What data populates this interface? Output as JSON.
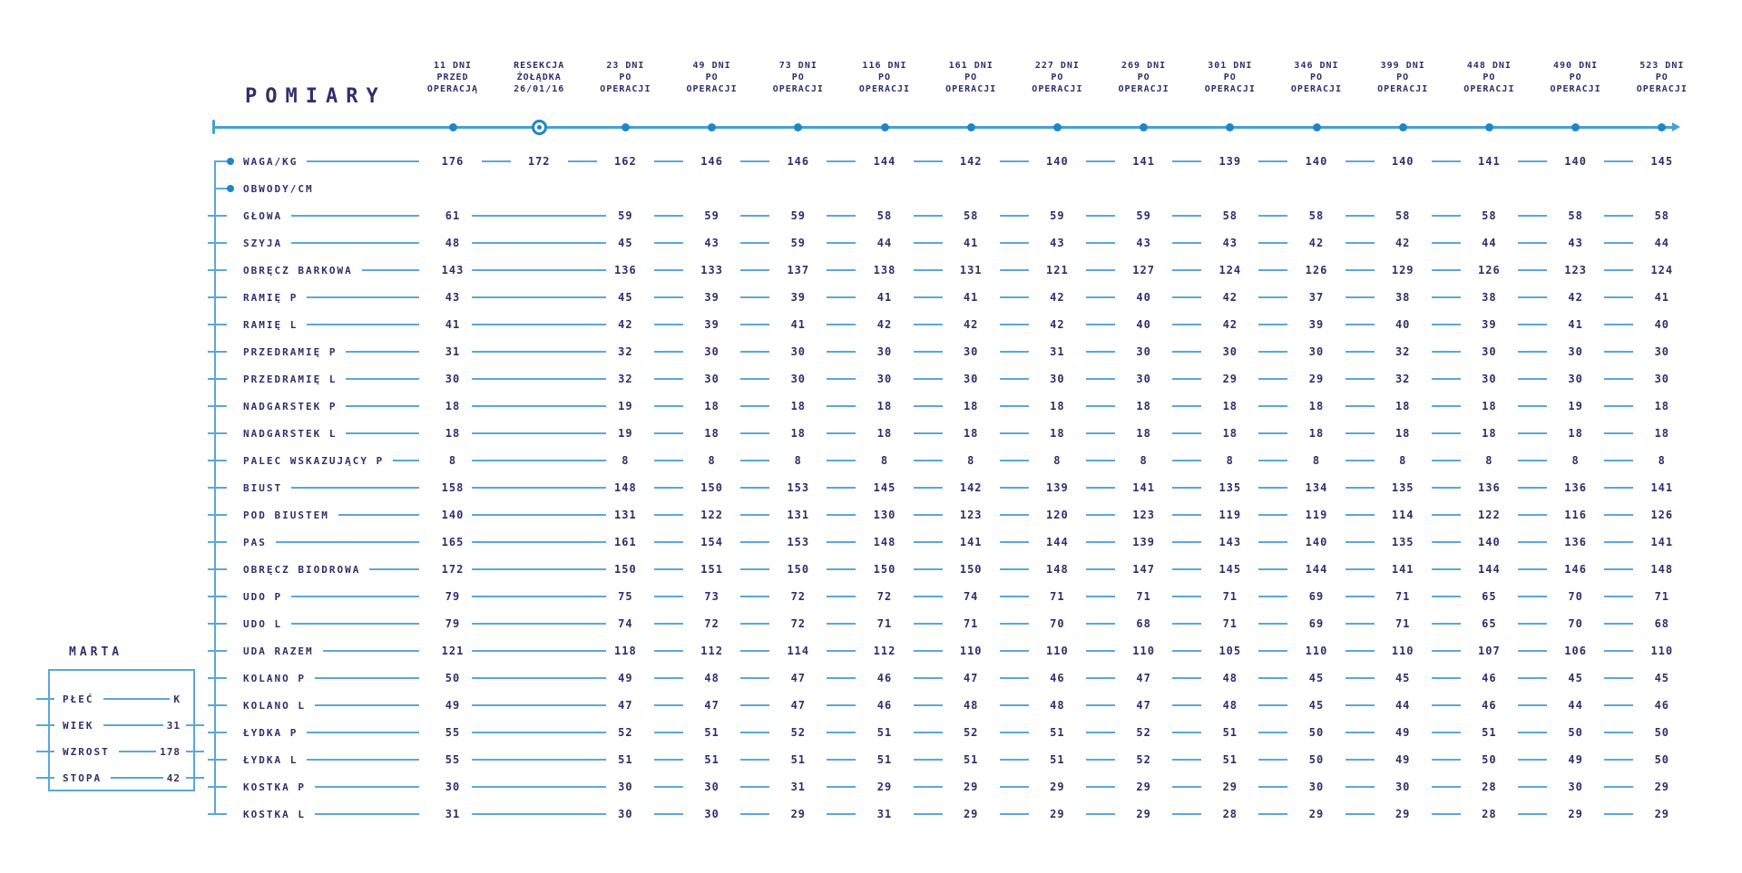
{
  "title": "POMIARY",
  "person": {
    "name": "MARTA",
    "fields": [
      {
        "label": "PŁEĆ",
        "value": "K"
      },
      {
        "label": "WIEK",
        "value": "31"
      },
      {
        "label": "WZROST",
        "value": "178"
      },
      {
        "label": "STOPA",
        "value": "42"
      }
    ]
  },
  "colors": {
    "navy_text": "#312e6b",
    "light_blue_line": "#5ba7d9",
    "accent_blue_dot": "#1f86c6"
  },
  "chart_data": {
    "type": "table",
    "title": "POMIARY",
    "legend_position": "none",
    "grid": false,
    "surgery_marker_column": 1,
    "columns": [
      [
        "11 DNI",
        "PRZED",
        "OPERACJĄ"
      ],
      [
        "RESEKCJA",
        "ŻOŁĄDKA",
        "26/01/16"
      ],
      [
        "23 DNI",
        "PO",
        "OPERACJI"
      ],
      [
        "49 DNI",
        "PO",
        "OPERACJI"
      ],
      [
        "73 DNI",
        "PO",
        "OPERACJI"
      ],
      [
        "116 DNI",
        "PO",
        "OPERACJI"
      ],
      [
        "161 DNI",
        "PO",
        "OPERACJI"
      ],
      [
        "227 DNI",
        "PO",
        "OPERACJI"
      ],
      [
        "269 DNI",
        "PO",
        "OPERACJI"
      ],
      [
        "301 DNI",
        "PO",
        "OPERACJI"
      ],
      [
        "346 DNI",
        "PO",
        "OPERACJI"
      ],
      [
        "399 DNI",
        "PO",
        "OPERACJI"
      ],
      [
        "448 DNI",
        "PO",
        "OPERACJI"
      ],
      [
        "490 DNI",
        "PO",
        "OPERACJI"
      ],
      [
        "523 DNI",
        "PO",
        "OPERACJI"
      ]
    ],
    "rows": [
      {
        "label": "WAGA/KG",
        "bullet": true,
        "values": [
          176,
          172,
          162,
          146,
          146,
          144,
          142,
          140,
          141,
          139,
          140,
          140,
          141,
          140,
          145
        ]
      },
      {
        "label": "OBWODY/CM",
        "bullet": true,
        "values": [
          null,
          null,
          null,
          null,
          null,
          null,
          null,
          null,
          null,
          null,
          null,
          null,
          null,
          null,
          null
        ]
      },
      {
        "label": "GŁOWA",
        "bullet": false,
        "values": [
          61,
          null,
          59,
          59,
          59,
          58,
          58,
          59,
          59,
          58,
          58,
          58,
          58,
          58,
          58
        ]
      },
      {
        "label": "SZYJA",
        "bullet": false,
        "values": [
          48,
          null,
          45,
          43,
          59,
          44,
          41,
          43,
          43,
          43,
          42,
          42,
          44,
          43,
          44
        ]
      },
      {
        "label": "OBRĘCZ BARKOWA",
        "bullet": false,
        "values": [
          143,
          null,
          136,
          133,
          137,
          138,
          131,
          121,
          127,
          124,
          126,
          129,
          126,
          123,
          124
        ]
      },
      {
        "label": "RAMIĘ P",
        "bullet": false,
        "values": [
          43,
          null,
          45,
          39,
          39,
          41,
          41,
          42,
          40,
          42,
          37,
          38,
          38,
          42,
          41
        ]
      },
      {
        "label": "RAMIĘ L",
        "bullet": false,
        "values": [
          41,
          null,
          42,
          39,
          41,
          42,
          42,
          42,
          40,
          42,
          39,
          40,
          39,
          41,
          40
        ]
      },
      {
        "label": "PRZEDRAMIĘ P",
        "bullet": false,
        "values": [
          31,
          null,
          32,
          30,
          30,
          30,
          30,
          31,
          30,
          30,
          30,
          32,
          30,
          30,
          30
        ]
      },
      {
        "label": "PRZEDRAMIĘ L",
        "bullet": false,
        "values": [
          30,
          null,
          32,
          30,
          30,
          30,
          30,
          30,
          30,
          29,
          29,
          32,
          30,
          30,
          30
        ]
      },
      {
        "label": "NADGARSTEK P",
        "bullet": false,
        "values": [
          18,
          null,
          19,
          18,
          18,
          18,
          18,
          18,
          18,
          18,
          18,
          18,
          18,
          19,
          18
        ]
      },
      {
        "label": "NADGARSTEK L",
        "bullet": false,
        "values": [
          18,
          null,
          19,
          18,
          18,
          18,
          18,
          18,
          18,
          18,
          18,
          18,
          18,
          18,
          18
        ]
      },
      {
        "label": "PALEC WSKAZUJĄCY P",
        "bullet": false,
        "values": [
          8,
          null,
          8,
          8,
          8,
          8,
          8,
          8,
          8,
          8,
          8,
          8,
          8,
          8,
          8
        ]
      },
      {
        "label": "BIUST",
        "bullet": false,
        "values": [
          158,
          null,
          148,
          150,
          153,
          145,
          142,
          139,
          141,
          135,
          134,
          135,
          136,
          136,
          141
        ]
      },
      {
        "label": "POD BIUSTEM",
        "bullet": false,
        "values": [
          140,
          null,
          131,
          122,
          131,
          130,
          123,
          120,
          123,
          119,
          119,
          114,
          122,
          116,
          126
        ]
      },
      {
        "label": "PAS",
        "bullet": false,
        "values": [
          165,
          null,
          161,
          154,
          153,
          148,
          141,
          144,
          139,
          143,
          140,
          135,
          140,
          136,
          141
        ]
      },
      {
        "label": "OBRĘCZ BIODROWA",
        "bullet": false,
        "values": [
          172,
          null,
          150,
          151,
          150,
          150,
          150,
          148,
          147,
          145,
          144,
          141,
          144,
          146,
          148
        ]
      },
      {
        "label": "UDO P",
        "bullet": false,
        "values": [
          79,
          null,
          75,
          73,
          72,
          72,
          74,
          71,
          71,
          71,
          69,
          71,
          65,
          70,
          71
        ]
      },
      {
        "label": "UDO L",
        "bullet": false,
        "values": [
          79,
          null,
          74,
          72,
          72,
          71,
          71,
          70,
          68,
          71,
          69,
          71,
          65,
          70,
          68
        ]
      },
      {
        "label": "UDA RAZEM",
        "bullet": false,
        "values": [
          121,
          null,
          118,
          112,
          114,
          112,
          110,
          110,
          110,
          105,
          110,
          110,
          107,
          106,
          110
        ]
      },
      {
        "label": "KOLANO P",
        "bullet": false,
        "values": [
          50,
          null,
          49,
          48,
          47,
          46,
          47,
          46,
          47,
          48,
          45,
          45,
          46,
          45,
          45
        ]
      },
      {
        "label": "KOLANO L",
        "bullet": false,
        "values": [
          49,
          null,
          47,
          47,
          47,
          46,
          48,
          48,
          47,
          48,
          45,
          44,
          46,
          44,
          46
        ]
      },
      {
        "label": "ŁYDKA P",
        "bullet": false,
        "values": [
          55,
          null,
          52,
          51,
          52,
          51,
          52,
          51,
          52,
          51,
          50,
          49,
          51,
          50,
          50
        ]
      },
      {
        "label": "ŁYDKA L",
        "bullet": false,
        "values": [
          55,
          null,
          51,
          51,
          51,
          51,
          51,
          51,
          52,
          51,
          50,
          49,
          50,
          49,
          50
        ]
      },
      {
        "label": "KOSTKA P",
        "bullet": false,
        "values": [
          30,
          null,
          30,
          30,
          31,
          29,
          29,
          29,
          29,
          29,
          30,
          30,
          28,
          30,
          29
        ]
      },
      {
        "label": "KOSTKA L",
        "bullet": false,
        "values": [
          31,
          null,
          30,
          30,
          29,
          31,
          29,
          29,
          29,
          28,
          29,
          29,
          28,
          29,
          29
        ]
      }
    ]
  }
}
